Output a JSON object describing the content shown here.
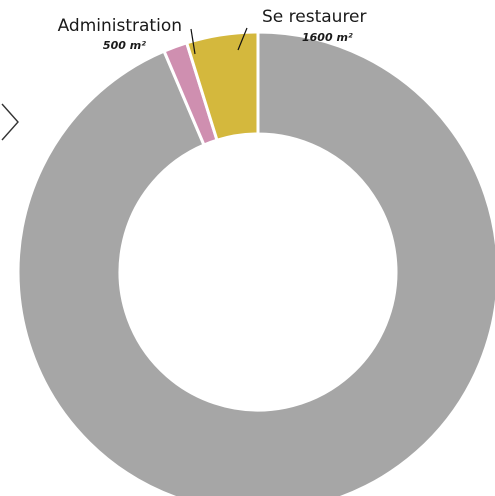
{
  "chart_data": {
    "type": "pie",
    "donut": true,
    "start_angle_deg": 0,
    "slices": [
      {
        "label": "",
        "value_text": "",
        "value": 93.6,
        "color": "#a6a6a6"
      },
      {
        "label": "Administration",
        "value_text": "500 m²",
        "value": 1.6,
        "color": "#cf8fb0"
      },
      {
        "label": "Se restaurer",
        "value_text": "1600 m²",
        "value": 4.8,
        "color": "#d4b83d"
      }
    ]
  }
}
